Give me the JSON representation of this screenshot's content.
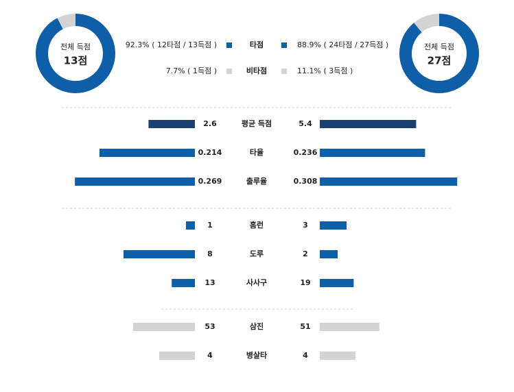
{
  "donuts": [
    {
      "title": "전체 득점",
      "total": "13점",
      "segments": [
        {
          "value": 92.3,
          "color": "#0f5ea8"
        },
        {
          "value": 7.7,
          "color": "#d3d3d3"
        }
      ]
    },
    {
      "title": "전체 득점",
      "total": "27점",
      "segments": [
        {
          "value": 88.9,
          "color": "#0f5ea8"
        },
        {
          "value": 11.1,
          "color": "#d3d3d3"
        }
      ]
    }
  ],
  "legend": [
    {
      "name": "타점",
      "left": "92.3% ( 12타점 / 13득점 )",
      "right": "88.9% ( 24타점 / 27득점 )",
      "color": "#0f5ea8"
    },
    {
      "name": "비타점",
      "left": "7.7% ( 1득점 )",
      "right": "11.1% ( 3득점 )",
      "color": "#d3d3d3"
    }
  ],
  "rows": [
    {
      "label": "평균 득점",
      "left": 2.6,
      "right": 5.4,
      "color": "#1b3f6e"
    },
    {
      "label": "타율",
      "left": 0.214,
      "right": 0.236,
      "color": "#0f5ea8"
    },
    {
      "label": "출루율",
      "left": 0.269,
      "right": 0.308,
      "color": "#0f5ea8"
    },
    {
      "label": "홈런",
      "left": 1,
      "right": 3,
      "color": "#0f5ea8"
    },
    {
      "label": "도루",
      "left": 8,
      "right": 2,
      "color": "#0f5ea8"
    },
    {
      "label": "사사구",
      "left": 13,
      "right": 19,
      "color": "#0f5ea8"
    },
    {
      "label": "삼진",
      "left": 53,
      "right": 51,
      "color": "#d3d3d3"
    },
    {
      "label": "병살타",
      "left": 4,
      "right": 4,
      "color": "#d3d3d3"
    }
  ]
}
